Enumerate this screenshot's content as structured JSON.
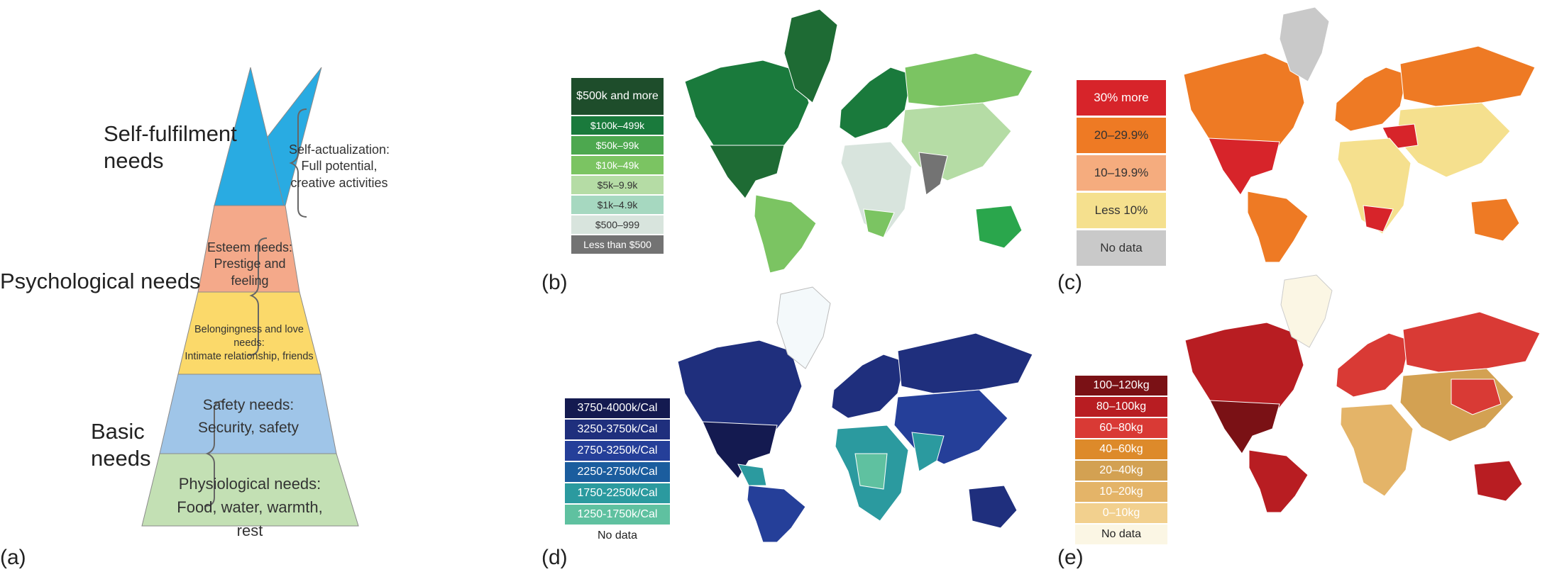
{
  "panel_a": {
    "label": "(a)",
    "groups": [
      {
        "text": "Self-fulfilment needs"
      },
      {
        "text": "Psychological needs"
      },
      {
        "text": "Basic needs"
      }
    ],
    "tiers": [
      {
        "line1": "Self-actualization:",
        "line2": "Full potential,",
        "line3": "creative activities",
        "color": "#29abe2"
      },
      {
        "line1": "Esteem needs:",
        "line2": "Prestige and feeling",
        "color": "#f4a98a"
      },
      {
        "line1": "Belongingness and love needs:",
        "line2": "Intimate relationship, friends",
        "color": "#fbd96a"
      },
      {
        "line1": "Safety needs:",
        "line2": "Security, safety",
        "color": "#9fc5e8"
      },
      {
        "line1": "Physiological needs:",
        "line2": "Food, water, warmth, rest",
        "color": "#c3e0b4"
      }
    ]
  },
  "panel_b": {
    "label": "(b)",
    "legend": [
      {
        "text": "$500k and more",
        "bg": "#1e4d2b",
        "fg": "#ffffff"
      },
      {
        "text": "$100k–499k",
        "bg": "#1a7a3c",
        "fg": "#ffffff"
      },
      {
        "text": "$50k–99k",
        "bg": "#4da84f",
        "fg": "#ffffff"
      },
      {
        "text": "$10k–49k",
        "bg": "#7bc462",
        "fg": "#ffffff"
      },
      {
        "text": "$5k–9.9k",
        "bg": "#b5dca5",
        "fg": "#333333"
      },
      {
        "text": "$1k–4.9k",
        "bg": "#a6d8c0",
        "fg": "#333333"
      },
      {
        "text": "$500–999",
        "bg": "#d8e4dd",
        "fg": "#333333"
      },
      {
        "text": "Less than $500",
        "bg": "#737373",
        "fg": "#ffffff"
      }
    ]
  },
  "panel_c": {
    "label": "(c)",
    "legend": [
      {
        "text": "30% more",
        "bg": "#d7242a",
        "fg": "#ffffff"
      },
      {
        "text": "20–29.9%",
        "bg": "#ee7a24",
        "fg": "#333333"
      },
      {
        "text": "10–19.9%",
        "bg": "#f5ac7e",
        "fg": "#333333"
      },
      {
        "text": "Less 10%",
        "bg": "#f5e08e",
        "fg": "#333333"
      },
      {
        "text": "No data",
        "bg": "#c9c9c9",
        "fg": "#333333"
      }
    ]
  },
  "panel_d": {
    "label": "(d)",
    "legend": [
      {
        "text": "3750-4000k/Cal",
        "bg": "#141a50",
        "fg": "#ffffff"
      },
      {
        "text": "3250-3750k/Cal",
        "bg": "#1f2f7d",
        "fg": "#ffffff"
      },
      {
        "text": "2750-3250k/Cal",
        "bg": "#253f99",
        "fg": "#ffffff"
      },
      {
        "text": "2250-2750k/Cal",
        "bg": "#1b5d9e",
        "fg": "#ffffff"
      },
      {
        "text": "1750-2250k/Cal",
        "bg": "#2b9a9f",
        "fg": "#ffffff"
      },
      {
        "text": "1250-1750k/Cal",
        "bg": "#5fc1a0",
        "fg": "#ffffff"
      },
      {
        "text": "No data",
        "bg": "#ffffff",
        "fg": "#222222"
      }
    ]
  },
  "panel_e": {
    "label": "(e)",
    "legend": [
      {
        "text": "100–120kg",
        "bg": "#7a1115",
        "fg": "#ffffff"
      },
      {
        "text": "80–100kg",
        "bg": "#b81d22",
        "fg": "#ffffff"
      },
      {
        "text": "60–80kg",
        "bg": "#d93a35",
        "fg": "#ffffff"
      },
      {
        "text": "40–60kg",
        "bg": "#dd8a2a",
        "fg": "#ffffff"
      },
      {
        "text": "20–40kg",
        "bg": "#d3a152",
        "fg": "#ffffff"
      },
      {
        "text": "10–20kg",
        "bg": "#e4b468",
        "fg": "#ffffff"
      },
      {
        "text": "0–10kg",
        "bg": "#f2d08e",
        "fg": "#ffffff"
      },
      {
        "text": "No data",
        "bg": "#fbf6e4",
        "fg": "#222222"
      }
    ]
  }
}
